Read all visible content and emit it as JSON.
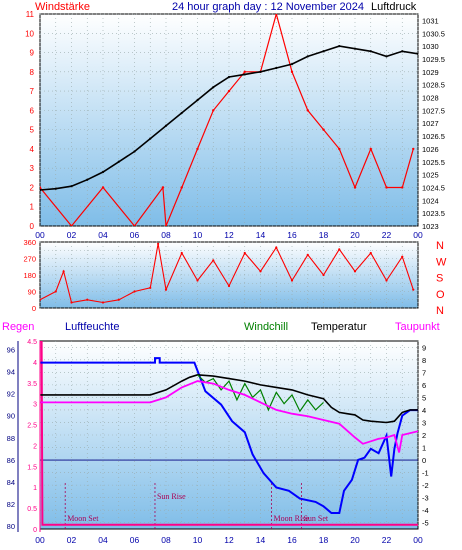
{
  "header": {
    "title": "24 hour graph day : 12 November 2024",
    "left_label": "Windstärke",
    "right_label": "Luftdruck"
  },
  "colors": {
    "red": "#ff0000",
    "blue": "#0000ff",
    "black": "#000000",
    "darkblue": "#0000aa",
    "green": "#008000",
    "magenta": "#ff00ff",
    "pink": "#ff0088",
    "navy": "#000080"
  },
  "chart_data": [
    {
      "type": "line",
      "panel": "wind_pressure",
      "x_ticks": [
        "00",
        "02",
        "04",
        "06",
        "08",
        "10",
        "12",
        "14",
        "16",
        "18",
        "20",
        "22",
        "00"
      ],
      "y_left_ticks": [
        "0",
        "1",
        "2",
        "3",
        "4",
        "5",
        "6",
        "7",
        "8",
        "9",
        "10",
        "11"
      ],
      "y_left_range": [
        0,
        11
      ],
      "y_right_ticks": [
        "1023",
        "1023.5",
        "1024",
        "1024.5",
        "1025",
        "1025.5",
        "1026",
        "1026.5",
        "1027",
        "1027.5",
        "1028",
        "1028.5",
        "1029",
        "1029.5",
        "1030",
        "1030.5",
        "1031"
      ],
      "y_right_range": [
        1023,
        1031.25
      ],
      "grid": true,
      "series": [
        {
          "name": "Windstärke",
          "color": "red",
          "axis": "left",
          "x": [
            0,
            2,
            4,
            6,
            7.8,
            8,
            9,
            10,
            11,
            12,
            13,
            14,
            15,
            16,
            17,
            18,
            19,
            20,
            21,
            22,
            23,
            23.7
          ],
          "y": [
            2,
            0,
            2,
            0,
            2,
            0,
            2,
            4,
            6,
            7,
            8,
            8,
            11,
            8,
            6,
            5,
            4,
            2,
            4,
            2,
            2,
            4
          ]
        },
        {
          "name": "Luftdruck",
          "color": "black",
          "axis": "right",
          "x": [
            0,
            1,
            2,
            3,
            4,
            5,
            6,
            7,
            8,
            9,
            10,
            11,
            12,
            13,
            14,
            15,
            16,
            17,
            18,
            19,
            20,
            21,
            22,
            23,
            24
          ],
          "y": [
            1024.4,
            1024.45,
            1024.55,
            1024.8,
            1025.1,
            1025.5,
            1025.9,
            1026.4,
            1026.9,
            1027.4,
            1027.9,
            1028.4,
            1028.8,
            1028.9,
            1029.0,
            1029.15,
            1029.3,
            1029.6,
            1029.8,
            1030.0,
            1029.9,
            1029.8,
            1029.6,
            1029.8,
            1029.7
          ]
        }
      ]
    },
    {
      "type": "line",
      "panel": "wind_direction",
      "x_ticks": [
        "00",
        "02",
        "04",
        "06",
        "08",
        "10",
        "12",
        "14",
        "16",
        "18",
        "20",
        "22",
        "00"
      ],
      "y_left_ticks": [
        "0",
        "45",
        "90",
        "135",
        "180",
        "225",
        "270",
        "315",
        "360"
      ],
      "y_left_range": [
        0,
        360
      ],
      "y_right_ticks": [
        "N",
        "W",
        "S",
        "O",
        "N"
      ],
      "grid": true,
      "series": [
        {
          "name": "Windrichtung",
          "color": "red",
          "x": [
            0,
            1,
            1.5,
            2,
            3,
            4,
            5,
            6,
            7,
            7.5,
            8,
            9,
            10,
            11,
            12,
            13,
            14,
            15,
            16,
            17,
            18,
            19,
            20,
            21,
            22,
            23,
            23.7
          ],
          "y": [
            45,
            90,
            200,
            30,
            45,
            30,
            45,
            90,
            110,
            350,
            100,
            300,
            150,
            260,
            120,
            300,
            200,
            330,
            150,
            290,
            180,
            320,
            200,
            300,
            150,
            280,
            100
          ]
        }
      ]
    },
    {
      "type": "line",
      "panel": "temp_humidity",
      "header_labels": [
        "Regen",
        "Luftfeuchte",
        "Windchill",
        "Temperatur",
        "Taupunkt"
      ],
      "x_ticks": [
        "00",
        "02",
        "04",
        "06",
        "08",
        "10",
        "12",
        "14",
        "16",
        "18",
        "20",
        "22",
        "00"
      ],
      "y_rain_ticks": [
        "0",
        "0.5",
        "1",
        "1.5",
        "2",
        "2.5",
        "3",
        "3.5",
        "4",
        "4.5"
      ],
      "y_rain_range": [
        0,
        4.5
      ],
      "y_humidity_ticks": [
        "80",
        "82",
        "84",
        "86",
        "88",
        "90",
        "92",
        "94",
        "96"
      ],
      "y_humidity_range": [
        79.75,
        96.75
      ],
      "y_temp_ticks": [
        "-5",
        "-4",
        "-3",
        "-2",
        "-1",
        "0",
        "1",
        "2",
        "3",
        "4",
        "5",
        "6",
        "7",
        "8",
        "9"
      ],
      "y_temp_range": [
        -5.5,
        9.5
      ],
      "annotations": [
        {
          "text": "Moon Set",
          "x": 1.6
        },
        {
          "text": "Sun Rise",
          "x": 7.3
        },
        {
          "text": "Moon Rise",
          "x": 14.7
        },
        {
          "text": "Sun Set",
          "x": 16.6
        }
      ],
      "grid": true,
      "series": [
        {
          "name": "Regen",
          "color": "pink",
          "axis": "rain",
          "x": [
            0,
            0.1,
            0.1,
            0.15,
            0.15,
            24
          ],
          "y": [
            4.5,
            4.5,
            4.5,
            0.1,
            0.1,
            0.1
          ]
        },
        {
          "name": "Luftfeuchte",
          "color": "blue",
          "axis": "humidity",
          "x": [
            0,
            7.3,
            7.3,
            7.6,
            7.6,
            9.8,
            10.5,
            11.5,
            12.2,
            13,
            13.5,
            14.2,
            15,
            15.8,
            16.5,
            17.5,
            18,
            18.5,
            19,
            19.3,
            19.8,
            20.2,
            20.6,
            21,
            21.5,
            22,
            22.3,
            22.5,
            22.7,
            23,
            23.5,
            24
          ],
          "y": [
            94.8,
            94.8,
            95.2,
            95.2,
            94.8,
            94.8,
            92.2,
            91,
            89.5,
            88.5,
            86.5,
            84.8,
            83.5,
            83.2,
            82.5,
            82.2,
            81.8,
            81.2,
            81.2,
            83.2,
            84.2,
            86,
            86.2,
            87,
            86.6,
            88.2,
            84.5,
            87,
            88.4,
            90,
            90.5,
            90.5
          ]
        },
        {
          "name": "Temperatur",
          "color": "black",
          "axis": "temp",
          "x": [
            0,
            7,
            8,
            9,
            9.5,
            10,
            11,
            12,
            13,
            14,
            15,
            16,
            17,
            18,
            18.5,
            19,
            19.5,
            20,
            20.5,
            21,
            22,
            22.5,
            23,
            23.5,
            24
          ],
          "y": [
            5.2,
            5.2,
            5.6,
            6.3,
            6.6,
            6.8,
            6.7,
            6.5,
            6.3,
            6.0,
            5.8,
            5.6,
            5.2,
            4.9,
            4.2,
            3.8,
            3.7,
            3.6,
            3.2,
            3.1,
            3.0,
            3.1,
            3.8,
            4.0,
            4.0
          ]
        },
        {
          "name": "Windchill",
          "color": "green",
          "axis": "temp",
          "x": [
            10,
            10.5,
            11,
            11.5,
            12,
            12.5,
            13,
            13.5,
            14,
            14.5,
            15,
            15.5,
            16,
            16.5,
            17,
            17.5,
            18
          ],
          "y": [
            6.8,
            6.2,
            6.5,
            5.6,
            6.3,
            4.8,
            6.1,
            5.0,
            5.6,
            4.0,
            5.4,
            4.5,
            5.2,
            3.9,
            4.8,
            4.0,
            4.6
          ]
        },
        {
          "name": "Taupunkt",
          "color": "magenta",
          "axis": "temp",
          "x": [
            0,
            7,
            8,
            9,
            10,
            11,
            12,
            13,
            14,
            15,
            16,
            17,
            18,
            19,
            20,
            20.5,
            21,
            21.5,
            22,
            22.5,
            22.8,
            23,
            24
          ],
          "y": [
            4.6,
            4.6,
            5.0,
            5.8,
            6.3,
            6.1,
            5.6,
            5.2,
            4.6,
            4.0,
            3.7,
            3.5,
            3.2,
            2.9,
            1.8,
            1.3,
            1.5,
            1.7,
            1.8,
            2.0,
            0.6,
            2.0,
            2.3
          ]
        }
      ]
    }
  ]
}
